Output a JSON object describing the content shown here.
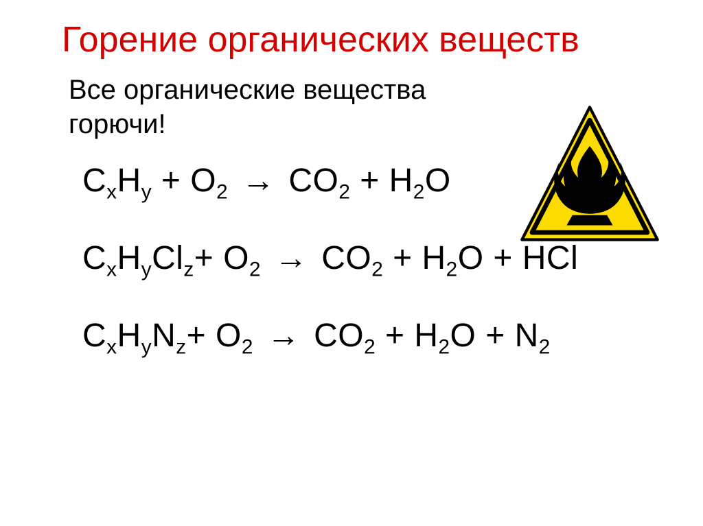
{
  "title": {
    "text": "Горение органических веществ",
    "color": "#d40000"
  },
  "subtitle": {
    "text": "Все органические вещества горючи!",
    "color": "#000000"
  },
  "equations": {
    "color": "#000000",
    "items": [
      {
        "lhs": "C<sub>x</sub>H<sub>y</sub> + O<sub>2</sub>",
        "rhs": "CO<sub>2</sub> + H<sub>2</sub>O"
      },
      {
        "lhs": "C<sub>x</sub>H<sub>y</sub>Cl<sub>z</sub>+ O<sub>2</sub>",
        "rhs": "CO<sub>2</sub> + H<sub>2</sub>O + HCl"
      },
      {
        "lhs": "C<sub>x</sub>H<sub>y</sub>N<sub>z</sub>+ O<sub>2</sub>",
        "rhs": "CO<sub>2</sub> + H<sub>2</sub>O + N<sub>2</sub>"
      }
    ]
  },
  "hazard_sign": {
    "fill": "#fcdc00",
    "stroke": "#000000",
    "size": 210
  }
}
